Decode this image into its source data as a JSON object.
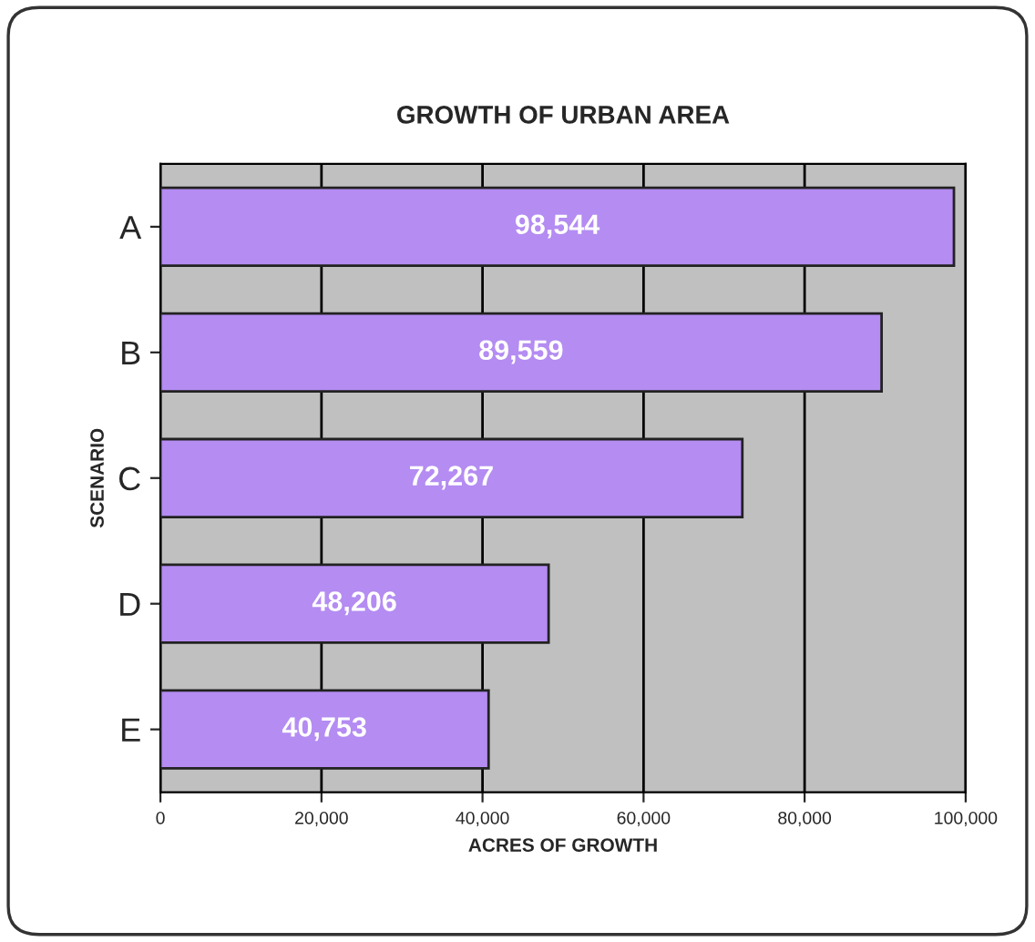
{
  "chart_data": {
    "type": "bar",
    "orientation": "horizontal",
    "title": "GROWTH OF URBAN AREA",
    "xlabel": "ACRES OF GROWTH",
    "ylabel": "SCENARIO",
    "categories": [
      "A",
      "B",
      "C",
      "D",
      "E"
    ],
    "values": [
      98544,
      89559,
      72267,
      48206,
      40753
    ],
    "value_labels": [
      "98,544",
      "89,559",
      "72,267",
      "48,206",
      "40,753"
    ],
    "color": "#b48cf2",
    "xlim": [
      0,
      100000
    ],
    "xticks": [
      0,
      {
        "value": 20000,
        "label": "20,000"
      },
      {
        "value": 40000,
        "label": "40,000"
      },
      {
        "value": 60000,
        "label": "60,000"
      },
      {
        "value": 80000,
        "label": "80,000"
      },
      {
        "value": 100000,
        "label": "100,000"
      }
    ],
    "grid": "x"
  }
}
